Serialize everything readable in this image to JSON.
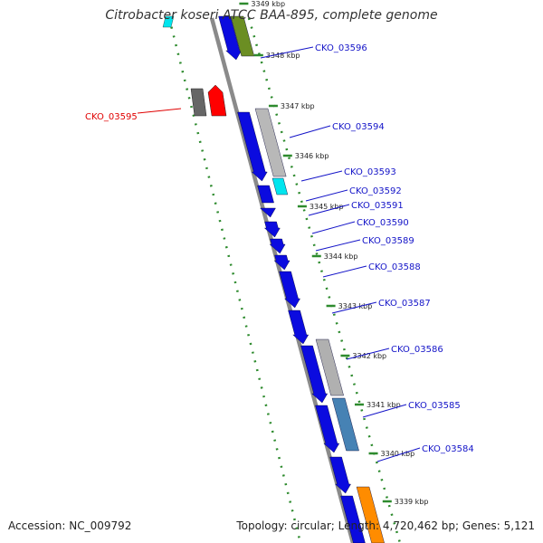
{
  "title": "Citrobacter koseri ATCC BAA-895, complete genome",
  "accession": "Accession: NC_009792",
  "summary": "Topology: circular; Length: 4,720,462 bp; Genes: 5,121",
  "colors": {
    "backbone": "#8a8a8a",
    "ring_dots": "#2e8b2e",
    "forward_gene": "#0b0bdf",
    "highlight_label": "#e00000",
    "label": "#1414c8"
  },
  "ticks": [
    "3349 kbp",
    "3348 kbp",
    "3347 kbp",
    "3346 kbp",
    "3345 kbp",
    "3344 kbp",
    "3343 kbp",
    "3342 kbp",
    "3341 kbp",
    "3340 kbp",
    "3339 kbp"
  ],
  "genes": [
    {
      "label": "CKO_03596",
      "highlight": false
    },
    {
      "label": "CKO_03595",
      "highlight": true
    },
    {
      "label": "CKO_03594",
      "highlight": false
    },
    {
      "label": "CKO_03593",
      "highlight": false
    },
    {
      "label": "CKO_03592",
      "highlight": false
    },
    {
      "label": "CKO_03591",
      "highlight": false
    },
    {
      "label": "CKO_03590",
      "highlight": false
    },
    {
      "label": "CKO_03589",
      "highlight": false
    },
    {
      "label": "CKO_03588",
      "highlight": false
    },
    {
      "label": "CKO_03587",
      "highlight": false
    },
    {
      "label": "CKO_03586",
      "highlight": false
    },
    {
      "label": "CKO_03585",
      "highlight": false
    },
    {
      "label": "CKO_03584",
      "highlight": false
    }
  ]
}
